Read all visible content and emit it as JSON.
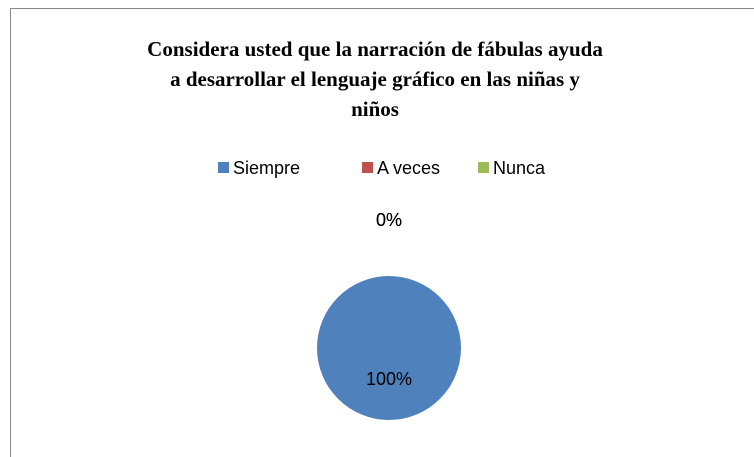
{
  "chart_data": {
    "type": "pie",
    "title": [
      "Considera  usted que la narración de fábulas ayuda",
      "a desarrollar el  lenguaje gráfico en las niñas y",
      "niños"
    ],
    "categories": [
      "Siempre",
      "A veces",
      "Nunca"
    ],
    "values": [
      100,
      0,
      0
    ],
    "value_labels": [
      "100%",
      "0%",
      "0%"
    ],
    "colors": [
      "#4f81bd",
      "#c0504d",
      "#9bbb59"
    ],
    "legend": "top"
  }
}
